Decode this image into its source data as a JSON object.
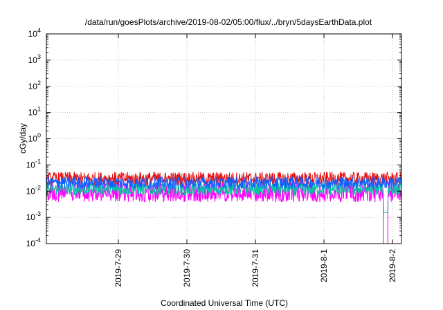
{
  "chart_data": {
    "type": "line",
    "title": "/data/run/goesPlots/archive/2019-08-02/05:00/flux/../bryn/5daysEarthData.plot",
    "xlabel": "Coordinated Universal Time (UTC)",
    "ylabel": "cGy/day",
    "yscale": "log",
    "ylim_exponents": [
      -4,
      4
    ],
    "y_ticks": [
      {
        "base": "10",
        "exp": "-4"
      },
      {
        "base": "10",
        "exp": "-3"
      },
      {
        "base": "10",
        "exp": "-2"
      },
      {
        "base": "10",
        "exp": "-1"
      },
      {
        "base": "10",
        "exp": "0"
      },
      {
        "base": "10",
        "exp": "1"
      },
      {
        "base": "10",
        "exp": "2"
      },
      {
        "base": "10",
        "exp": "3"
      },
      {
        "base": "10",
        "exp": "4"
      }
    ],
    "xlim_days": [
      -1.05,
      4.13
    ],
    "x_ticks": [
      {
        "label": "2019-7-29",
        "day": 0
      },
      {
        "label": "2019-7-30",
        "day": 1
      },
      {
        "label": "2019-7-31",
        "day": 2
      },
      {
        "label": "2019-8-1",
        "day": 3
      },
      {
        "label": "2019-8-2",
        "day": 4
      }
    ],
    "grid": true,
    "series_style": [
      {
        "color": "#ff00ff",
        "mean": 0.0062,
        "low": 0.0038,
        "high": 0.023
      },
      {
        "color": "#00c8a0",
        "mean": 0.012,
        "low": 0.008,
        "high": 0.026
      },
      {
        "color": "#e81010",
        "mean": 0.03,
        "low": 0.018,
        "high": 0.065
      },
      {
        "color": "#1060ff",
        "mean": 0.021,
        "low": 0.014,
        "high": 0.045
      }
    ],
    "notes": "Dense ~5 day time series; low-value gap near 2019-8-1 22:00 drops below 1e-4"
  }
}
